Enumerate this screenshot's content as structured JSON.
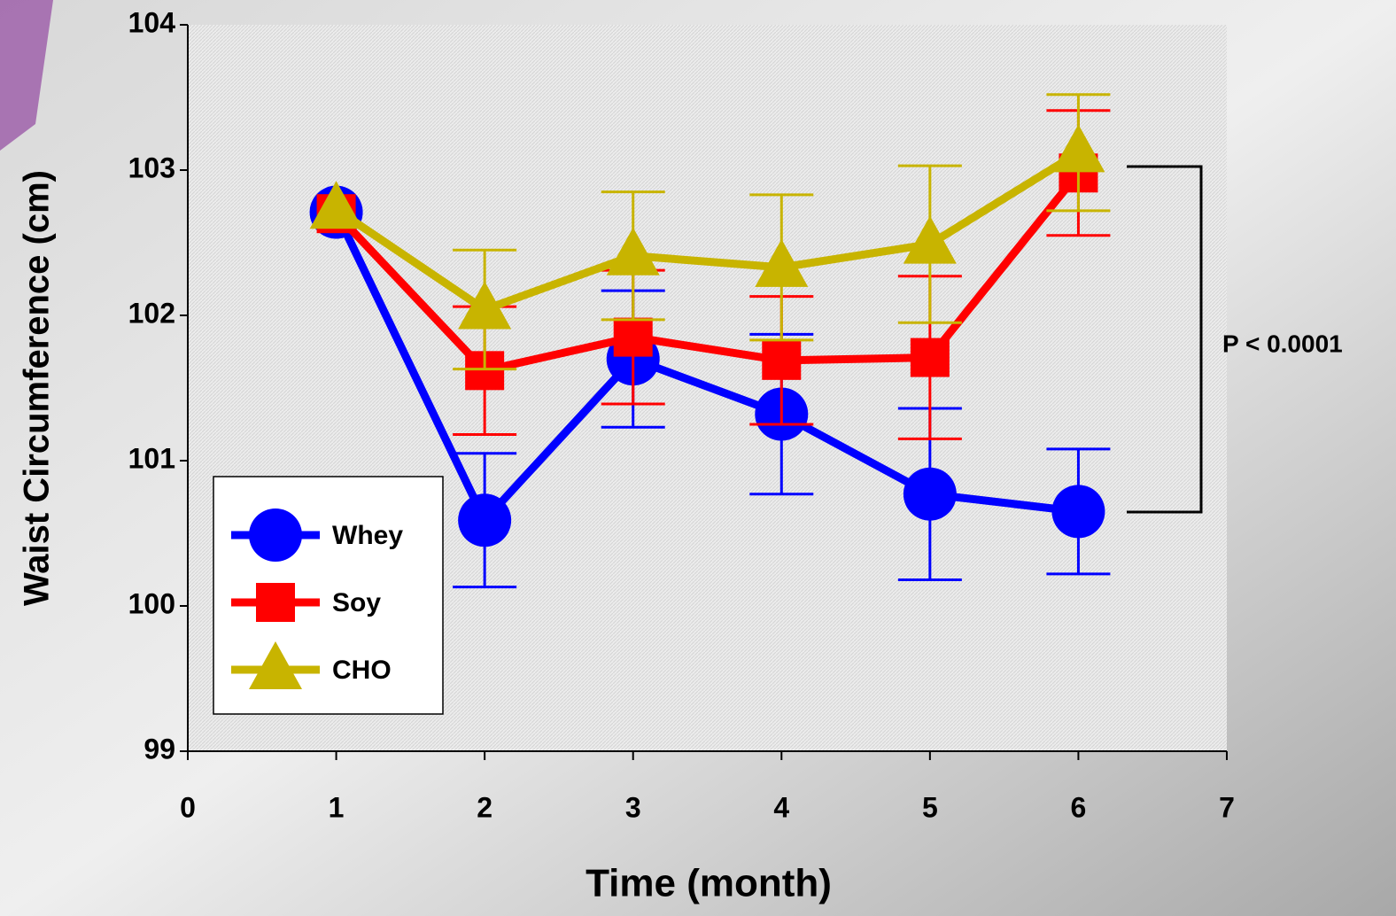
{
  "chart_data": {
    "type": "line",
    "x_label": "Time (month)",
    "y_label": "Waist Circumference (cm)",
    "x": [
      1,
      2,
      3,
      4,
      5,
      6
    ],
    "xlim": [
      0,
      7
    ],
    "xticks": [
      0,
      1,
      2,
      3,
      4,
      5,
      6,
      7
    ],
    "ylim": [
      99,
      104
    ],
    "yticks": [
      99,
      100,
      101,
      102,
      103,
      104
    ],
    "legend": "lower left",
    "annotation": "P < 0.0001",
    "series": [
      {
        "name": "Whey",
        "color": "#0000ff",
        "marker": "circle",
        "values": [
          102.71,
          100.59,
          101.7,
          101.32,
          100.77,
          100.65
        ],
        "errors": [
          null,
          0.46,
          0.47,
          0.55,
          0.59,
          0.43
        ]
      },
      {
        "name": "Soy",
        "color": "#ff0000",
        "marker": "square",
        "values": [
          102.7,
          101.62,
          101.85,
          101.69,
          101.71,
          102.98
        ],
        "errors": [
          null,
          0.44,
          0.46,
          0.44,
          0.56,
          0.43
        ]
      },
      {
        "name": "CHO",
        "color": "#c8b400",
        "marker": "triangle",
        "values": [
          102.73,
          102.04,
          102.41,
          102.33,
          102.49,
          103.12
        ],
        "errors": [
          null,
          0.41,
          0.44,
          0.5,
          0.54,
          0.4
        ]
      }
    ]
  }
}
